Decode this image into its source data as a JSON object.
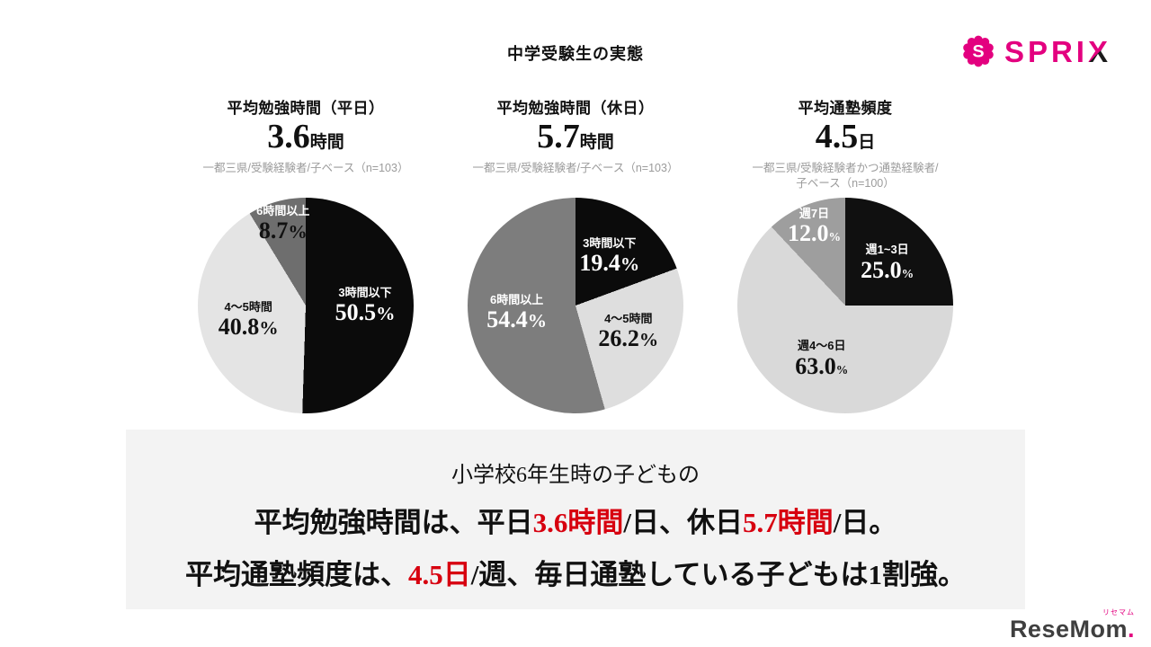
{
  "page": {
    "title": "中学受験生の実態"
  },
  "colors": {
    "accent_red": "#d7000f",
    "brand_pink": "#e3007f",
    "note_gray": "#9b9b9b",
    "summary_bg": "#f3f3f3",
    "resemom_gray": "#3f3f3f"
  },
  "brand": {
    "sprix_head": "SPRI",
    "sprix_x": "X",
    "resemom_kana": "リセマム",
    "resemom_text": "ReseMom",
    "resemom_dot": "."
  },
  "summary": {
    "line1": "小学校6年生時の子どもの",
    "line2_parts": [
      {
        "text": "平均勉強時間は、平日",
        "red": false
      },
      {
        "text": "3.6時間",
        "red": true
      },
      {
        "text": "/日、休日",
        "red": false
      },
      {
        "text": "5.7時間",
        "red": true
      },
      {
        "text": "/日。",
        "red": false
      }
    ],
    "line3_parts": [
      {
        "text": "平均通塾頻度は、",
        "red": false
      },
      {
        "text": "4.5日",
        "red": true
      },
      {
        "text": "/週、毎日通塾している子どもは1割強。",
        "red": false
      }
    ]
  },
  "chart_data": [
    {
      "type": "pie",
      "title": "平均勉強時間（平日）",
      "headline_value": "3.6",
      "headline_unit": "時間",
      "base_note": [
        "一都三県/受験経験者/子ベース（n=103）"
      ],
      "percent_sign_small": false,
      "start_angle_deg": 0,
      "legend_position": "inside",
      "slices": [
        {
          "label": "3時間以下",
          "pct": 50.5,
          "pct_text": "50.5",
          "color": "#0b0b0b",
          "text_color": "#ffffff"
        },
        {
          "label": "4～5時間",
          "pct": 40.8,
          "pct_text": "40.8",
          "color": "#e4e4e4",
          "text_color": "#111111"
        },
        {
          "label": "6時間以上",
          "pct": 8.7,
          "pct_text": "8.7",
          "color": "#6e6e6e",
          "text_color": "#ffffff",
          "pct_color": "#111111"
        }
      ]
    },
    {
      "type": "pie",
      "title": "平均勉強時間（休日）",
      "headline_value": "5.7",
      "headline_unit": "時間",
      "base_note": [
        "一都三県/受験経験者/子ベース（n=103）"
      ],
      "percent_sign_small": false,
      "start_angle_deg": 0,
      "legend_position": "inside",
      "slices": [
        {
          "label": "3時間以下",
          "pct": 19.4,
          "pct_text": "19.4",
          "color": "#0b0b0b",
          "text_color": "#ffffff"
        },
        {
          "label": "4～5時間",
          "pct": 26.2,
          "pct_text": "26.2",
          "color": "#dedede",
          "text_color": "#111111"
        },
        {
          "label": "6時間以上",
          "pct": 54.4,
          "pct_text": "54.4",
          "color": "#7d7d7d",
          "text_color": "#ffffff"
        }
      ]
    },
    {
      "type": "pie",
      "title": "平均通塾頻度",
      "headline_value": "4.5",
      "headline_unit": "日",
      "base_note": [
        "一都三県/受験経験者かつ通塾経験者/",
        "子ベース（n=100）"
      ],
      "percent_sign_small": true,
      "start_angle_deg": 0,
      "legend_position": "inside",
      "slices": [
        {
          "label": "週1~3日",
          "pct": 25.0,
          "pct_text": "25.0",
          "color": "#101010",
          "text_color": "#ffffff"
        },
        {
          "label": "週4～6日",
          "pct": 63.0,
          "pct_text": "63.0",
          "color": "#d9d9d9",
          "text_color": "#111111"
        },
        {
          "label": "週7日",
          "pct": 12.0,
          "pct_text": "12.0",
          "color": "#9e9e9e",
          "text_color": "#ffffff"
        }
      ]
    }
  ]
}
